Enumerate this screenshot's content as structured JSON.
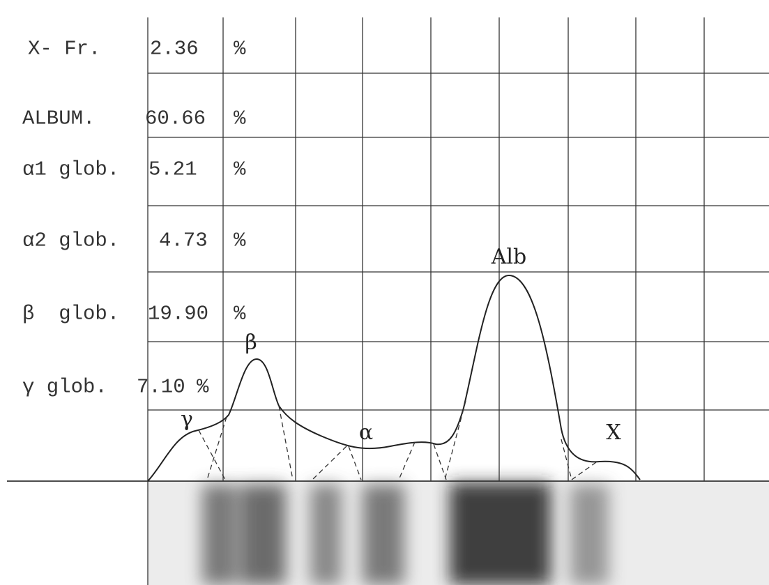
{
  "fractions": [
    {
      "label": "X- Fr.",
      "value": "2.36",
      "unit": "%"
    },
    {
      "label": "ALBUM.",
      "value": "60.66",
      "unit": "%"
    },
    {
      "label": "α1 glob.",
      "value": "5.21",
      "unit": "%"
    },
    {
      "label": "α2 glob.",
      "value": "4.73",
      "unit": "%"
    },
    {
      "label": "β  glob.",
      "value": "19.90",
      "unit": "%"
    },
    {
      "label": "γ glob.",
      "value": "7.10",
      "unit": "%"
    }
  ],
  "peaks": {
    "gamma": "γ",
    "beta": "β",
    "alpha": "α",
    "albumin": "Alb",
    "x": "X"
  }
}
